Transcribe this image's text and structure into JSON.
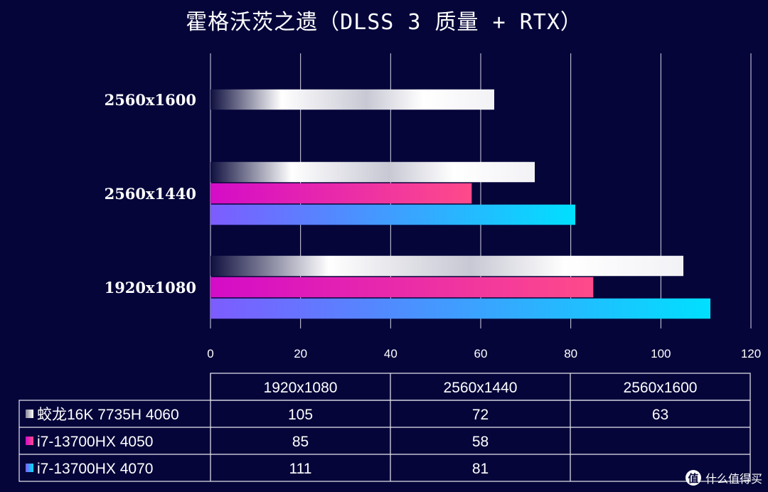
{
  "chart_data": {
    "type": "bar",
    "orientation": "horizontal",
    "title": "霍格沃茨之遗（DLSS 3 质量 + RTX）",
    "categories": [
      "1920x1080",
      "2560x1440",
      "2560x1600"
    ],
    "series": [
      {
        "name": "蛟龙16K 7735H 4060",
        "values": [
          105,
          72,
          63
        ],
        "color": "#e8e8ee"
      },
      {
        "name": "i7-13700HX 4050",
        "values": [
          85,
          58,
          null
        ],
        "color": "#e83aa8"
      },
      {
        "name": "i7-13700HX 4070",
        "values": [
          111,
          81,
          null
        ],
        "color": "#33c6ff"
      }
    ],
    "xlim": [
      0,
      120
    ],
    "xticks": [
      0,
      20,
      40,
      60,
      80,
      100,
      120
    ],
    "grid": true,
    "legend": "data-table-below"
  },
  "table": {
    "headers": [
      "1920x1080",
      "2560x1440",
      "2560x1600"
    ],
    "rows": [
      {
        "label": "蛟龙16K 7735H 4060",
        "cells": [
          "105",
          "72",
          "63"
        ]
      },
      {
        "label": "i7-13700HX 4050",
        "cells": [
          "85",
          "58",
          ""
        ]
      },
      {
        "label": "i7-13700HX 4070",
        "cells": [
          "111",
          "81",
          ""
        ]
      }
    ]
  },
  "watermark": {
    "icon": "值",
    "text": "什么值得买"
  }
}
